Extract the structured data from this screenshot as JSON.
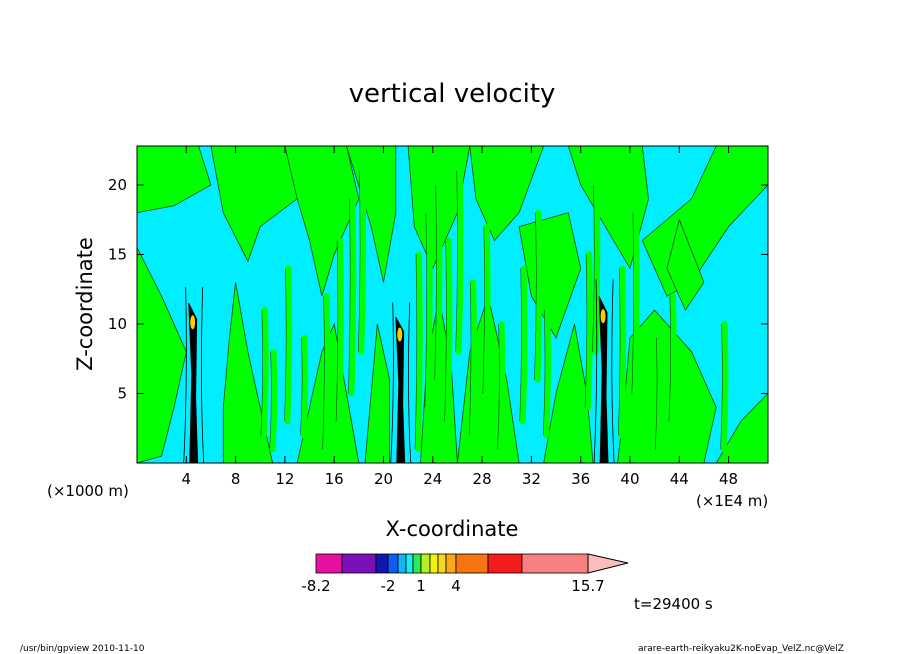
{
  "chart_data": {
    "type": "heatmap",
    "title": "vertical velocity",
    "xlabel": "X-coordinate",
    "ylabel": "Z-coordinate",
    "x_unit_left": "(×1000 m)",
    "x_unit_right": "(×1E4 m)",
    "x_ticks": [
      "4",
      "8",
      "12",
      "16",
      "20",
      "24",
      "28",
      "32",
      "36",
      "40",
      "44",
      "48"
    ],
    "y_ticks": [
      "5",
      "10",
      "15",
      "20"
    ],
    "xlim": [
      0,
      51.2
    ],
    "ylim": [
      0,
      22.8
    ],
    "colorbar": {
      "label_values": [
        "-8.2",
        "-2",
        "1",
        "4",
        "15.7"
      ],
      "colors": [
        "#e6119e",
        "#7a10b8",
        "#1016b0",
        "#0f5cf0",
        "#12b6f5",
        "#16f0f0",
        "#2fe858",
        "#b6f020",
        "#f2f20c",
        "#f5d81a",
        "#f7a81b",
        "#f77510",
        "#f51b1b",
        "#f88080",
        "#fbbcbc"
      ]
    },
    "field_colors": {
      "upward": "#00ff00",
      "downward": "#00eeff",
      "core": "#000000",
      "hot": "#ffcc00"
    },
    "time_label": "t=29400 s"
  },
  "footer": {
    "left": "/usr/bin/gpview   2010-11-10",
    "right": "arare-earth-reikyaku2K-noEvap_VelZ.nc@VelZ"
  }
}
